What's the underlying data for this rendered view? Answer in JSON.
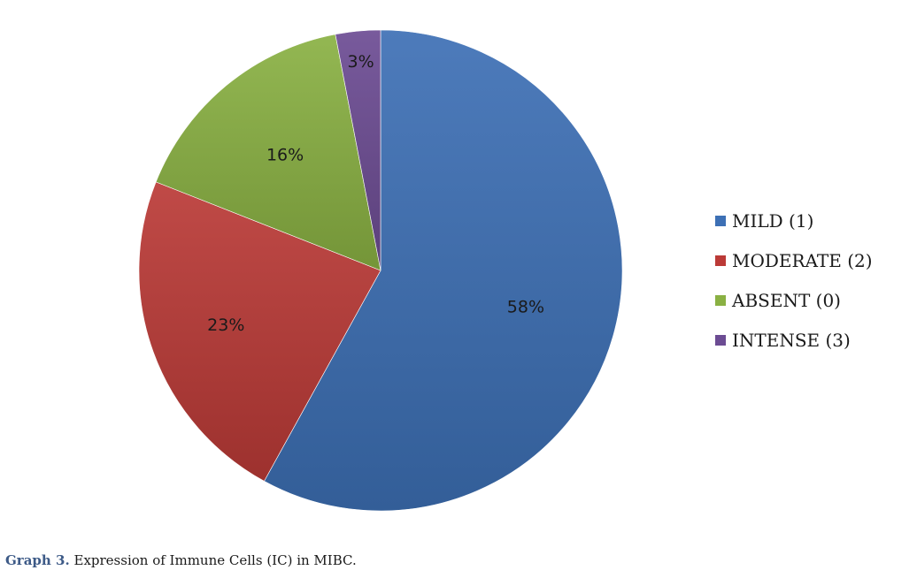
{
  "chart_data": {
    "type": "pie",
    "slices": [
      {
        "label": "MILD (1)",
        "value": 58,
        "value_label": "58%",
        "color": "#3d70b5"
      },
      {
        "label": "MODERATE (2)",
        "value": 23,
        "value_label": "23%",
        "color": "#bb3a37"
      },
      {
        "label": "ABSENT (0)",
        "value": 16,
        "value_label": "16%",
        "color": "#8ab143"
      },
      {
        "label": "INTENSE (3)",
        "value": 3,
        "value_label": "3%",
        "color": "#6c4c93"
      }
    ],
    "start": "12 o'clock",
    "direction": "clockwise",
    "legend_position": "right"
  },
  "caption": {
    "prefix": "Graph 3.",
    "text": "Expression of Immune Cells (IC) in MIBC."
  }
}
